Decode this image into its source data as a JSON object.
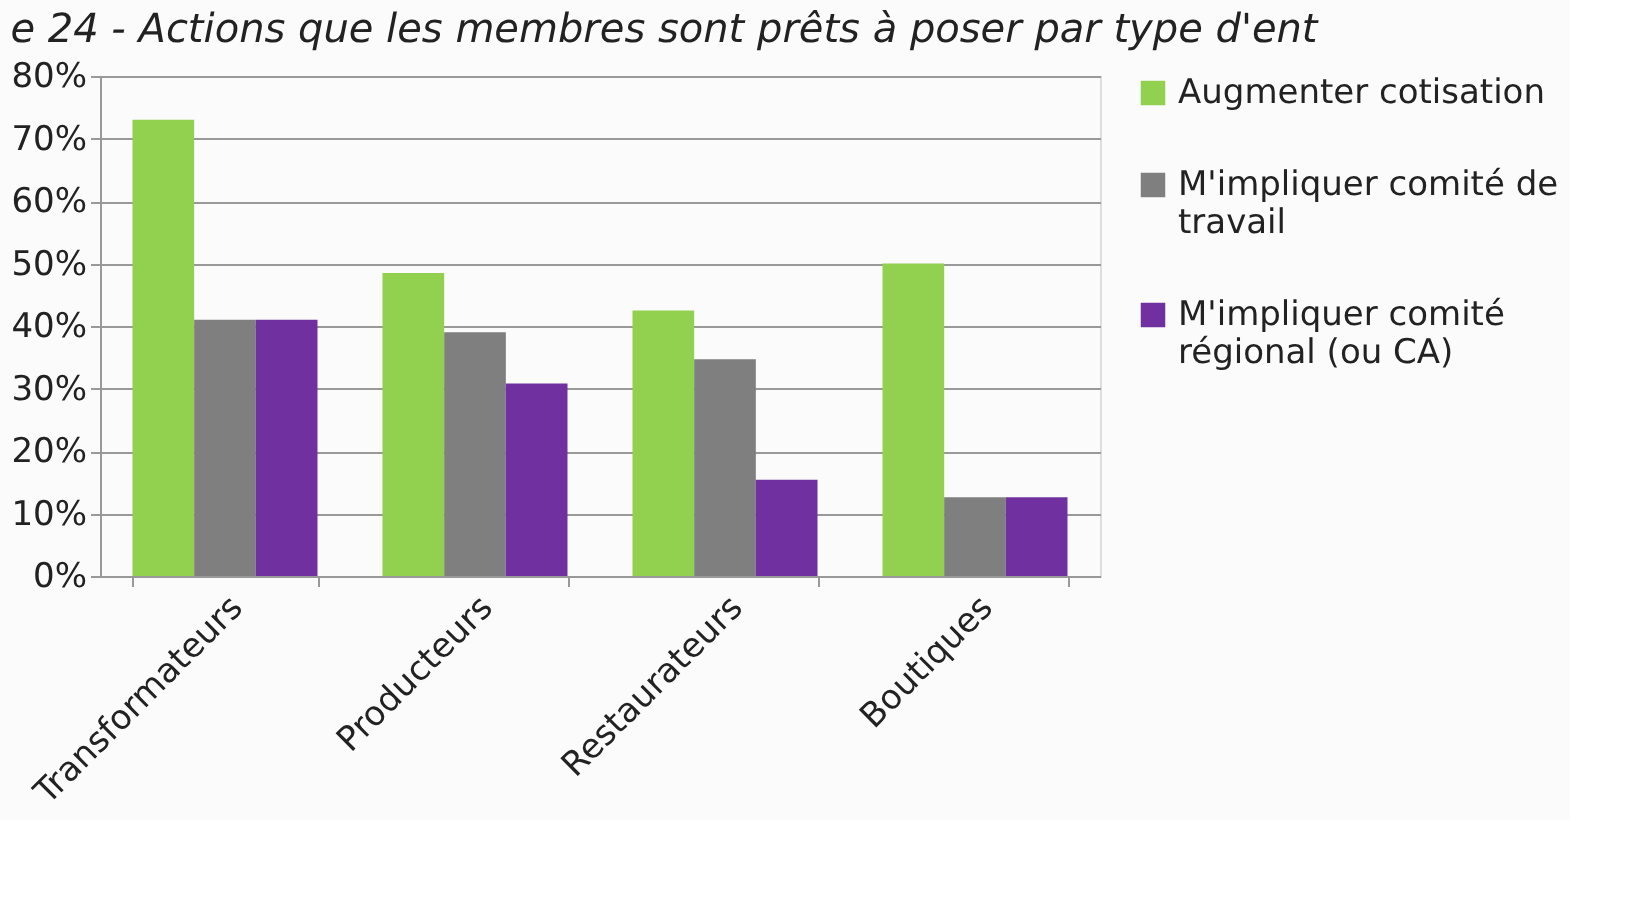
{
  "chart_data": {
    "type": "bar",
    "title": "e 24 - Actions que les membres sont prêts à poser par type d'ent",
    "categories": [
      "Transformateurs",
      "Producteurs",
      "Restaurateurs",
      "Boutiques"
    ],
    "series": [
      {
        "name": "Augmenter cotisation",
        "color": "#92d050",
        "values": [
          73,
          48.5,
          42.5,
          50
        ]
      },
      {
        "name": "M'impliquer comité de travail",
        "color": "#7f7f7f",
        "values": [
          41,
          39,
          34.7,
          12.6
        ]
      },
      {
        "name": "M'impliquer comité régional (ou CA)",
        "color": "#7030a0",
        "values": [
          41,
          30.8,
          15.4,
          12.6
        ]
      }
    ],
    "ylim": [
      0,
      80
    ],
    "yticks": [
      {
        "value": 0,
        "label": "0%"
      },
      {
        "value": 10,
        "label": "10%"
      },
      {
        "value": 20,
        "label": "20%"
      },
      {
        "value": 30,
        "label": "30%"
      },
      {
        "value": 40,
        "label": "40%"
      },
      {
        "value": 50,
        "label": "50%"
      },
      {
        "value": 60,
        "label": "60%"
      },
      {
        "value": 70,
        "label": "70%"
      },
      {
        "value": 80,
        "label": "80%"
      }
    ],
    "grid": "y",
    "legend": "right"
  }
}
